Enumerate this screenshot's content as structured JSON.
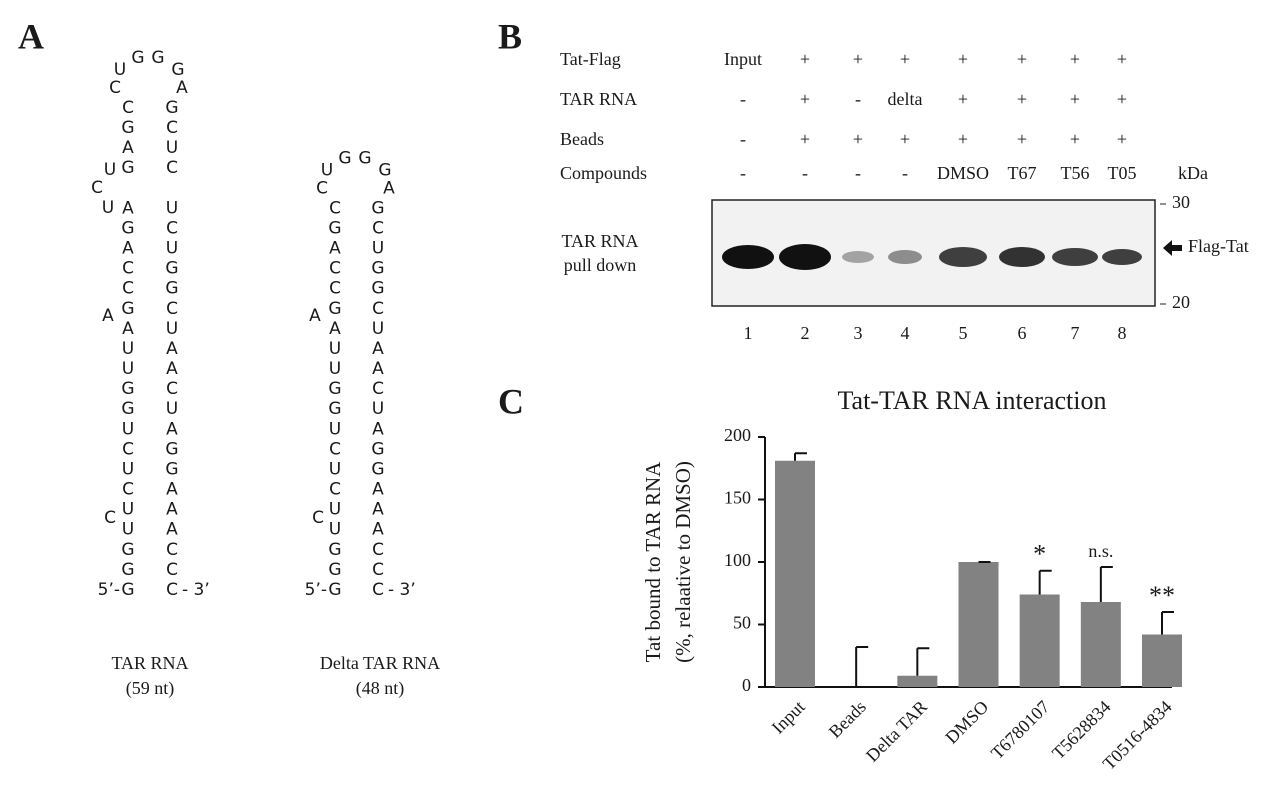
{
  "panel_a": {
    "label": "A",
    "structures": [
      {
        "loop": [
          "C",
          "U",
          "G",
          "G",
          "G",
          "A"
        ],
        "left": [
          "C",
          "G",
          "A",
          "G",
          null,
          "A",
          "G",
          "A",
          "C",
          "C",
          "G",
          "A",
          "U",
          "U",
          "G",
          "G",
          "U",
          "C",
          "U",
          "C",
          "U",
          "U",
          "G",
          "G",
          "G"
        ],
        "right": [
          "G",
          "C",
          "U",
          "C",
          null,
          "U",
          "C",
          "U",
          "G",
          "G",
          "C",
          "U",
          "A",
          "A",
          "C",
          "U",
          "A",
          "G",
          "G",
          "A",
          "A",
          "A",
          "C",
          "C",
          "C"
        ],
        "bulges": [
          [
            "U",
            "C",
            "U"
          ],
          [
            "A"
          ],
          [
            "C"
          ]
        ],
        "five_prime": "5’-",
        "three_prime": "- 3’",
        "name": "TAR RNA",
        "length": "(59 nt)"
      },
      {
        "loop": [
          "C",
          "U",
          "G",
          "G",
          "G",
          "A"
        ],
        "left": [
          "C",
          "G",
          "A",
          "C",
          "C",
          "G",
          "A",
          "U",
          "U",
          "G",
          "G",
          "U",
          "C",
          "U",
          "C",
          "U",
          "U",
          "G",
          "G",
          "G"
        ],
        "right": [
          "G",
          "C",
          "U",
          "G",
          "G",
          "C",
          "U",
          "A",
          "A",
          "C",
          "U",
          "A",
          "G",
          "G",
          "A",
          "A",
          "A",
          "C",
          "C",
          "C"
        ],
        "bulges": [
          [
            "A"
          ],
          [
            "C"
          ]
        ],
        "five_prime": "5’-",
        "three_prime": "- 3’",
        "name": "Delta TAR RNA",
        "length": "(48 nt)"
      }
    ]
  },
  "panel_b": {
    "label": "B",
    "rows": [
      {
        "name": "Tat-Flag",
        "cells": [
          "Input",
          "+",
          "+",
          "+",
          "+",
          "+",
          "+",
          "+"
        ]
      },
      {
        "name": "TAR RNA",
        "cells": [
          "-",
          "+",
          "-",
          "delta",
          "+",
          "+",
          "+",
          "+"
        ]
      },
      {
        "name": "Beads",
        "cells": [
          "-",
          "+",
          "+",
          "+",
          "+",
          "+",
          "+",
          "+"
        ]
      },
      {
        "name": "Compounds",
        "cells": [
          "-",
          "-",
          "-",
          "-",
          "DMSO",
          "T67",
          "T56",
          "T05"
        ]
      }
    ],
    "unit": "kDa",
    "markers": [
      "30",
      "20"
    ],
    "blot_label": [
      "TAR RNA",
      "pull down"
    ],
    "band_label": "Flag-Tat",
    "lanes": [
      "1",
      "2",
      "3",
      "4",
      "5",
      "6",
      "7",
      "8"
    ]
  },
  "chart_data": {
    "type": "bar",
    "panel_label": "C",
    "title": "Tat-TAR RNA interaction",
    "y_label": [
      "Tat bound to TAR RNA",
      "(%,  relaative to DMSO)"
    ],
    "categories": [
      "Input",
      "Beads",
      "Delta TAR",
      "DMSO",
      "T6780107",
      "T5628834",
      "T0516-4834"
    ],
    "values": [
      181,
      0,
      9,
      100,
      74,
      68,
      42
    ],
    "errors": [
      6,
      32,
      22,
      0,
      19,
      28,
      18
    ],
    "annotations": [
      null,
      null,
      null,
      null,
      "*",
      "n.s.",
      "**"
    ],
    "color": "#828282",
    "ylim": [
      0,
      200
    ],
    "yticks": [
      0,
      50,
      100,
      150,
      200
    ]
  }
}
